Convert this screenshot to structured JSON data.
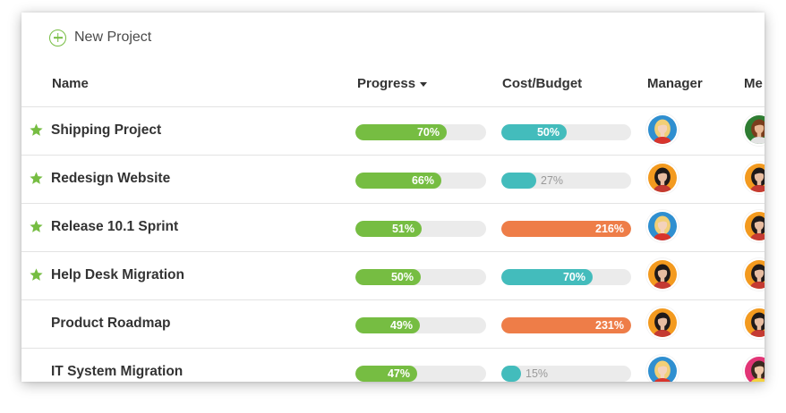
{
  "toolbar": {
    "new_project_label": "New Project"
  },
  "columns": {
    "name": "Name",
    "progress": "Progress",
    "cost_budget": "Cost/Budget",
    "manager": "Manager",
    "members": "Me"
  },
  "colors": {
    "progress": "#76bd42",
    "cost_ok": "#43bcbc",
    "cost_over": "#ee7d48",
    "star": "#76bd42"
  },
  "rows": [
    {
      "name": "Shipping Project",
      "starred": true,
      "progress": 70,
      "progress_label": "70%",
      "cost": 50,
      "cost_label": "50%",
      "cost_status": "ok",
      "manager": "blonde-woman-avatar",
      "member": "green-shirt-man-avatar"
    },
    {
      "name": "Redesign Website",
      "starred": true,
      "progress": 66,
      "progress_label": "66%",
      "cost": 27,
      "cost_label": "27%",
      "cost_status": "ok",
      "manager": "dark-hair-woman-avatar",
      "member": "dark-hair-woman-avatar"
    },
    {
      "name": "Release 10.1 Sprint",
      "starred": true,
      "progress": 51,
      "progress_label": "51%",
      "cost": 216,
      "cost_label": "216%",
      "cost_status": "over",
      "manager": "blonde-woman-avatar",
      "member": "dark-hair-woman-avatar"
    },
    {
      "name": "Help Desk Migration",
      "starred": true,
      "progress": 50,
      "progress_label": "50%",
      "cost": 70,
      "cost_label": "70%",
      "cost_status": "ok",
      "manager": "dark-hair-woman-avatar",
      "member": "dark-hair-woman-avatar"
    },
    {
      "name": "Product Roadmap",
      "starred": false,
      "progress": 49,
      "progress_label": "49%",
      "cost": 231,
      "cost_label": "231%",
      "cost_status": "over",
      "manager": "dark-hair-woman-avatar",
      "member": "dark-hair-woman-avatar"
    },
    {
      "name": "IT System Migration",
      "starred": false,
      "progress": 47,
      "progress_label": "47%",
      "cost": 15,
      "cost_label": "15%",
      "cost_status": "ok",
      "manager": "blonde-woman-avatar",
      "member": "pink-bg-woman-avatar"
    }
  ]
}
